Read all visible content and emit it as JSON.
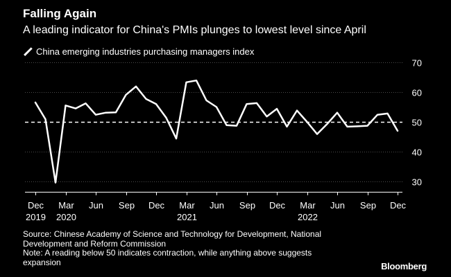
{
  "title": "Falling Again",
  "subtitle": "A leading indicator for China's PMIs plunges to lowest level since April",
  "legend": {
    "label": "China emerging industries purchasing managers index",
    "icon": "diagonal-line-icon"
  },
  "source": {
    "lines": [
      "Source: Chinese Academy of Science and Technology for Development, National",
      "Development and Reform Commission",
      "Note: A reading below 50 indicates contraction, while anything above suggests",
      "expansion"
    ]
  },
  "brand": "Bloomberg",
  "colors": {
    "background": "#000000",
    "line": "#ffffff",
    "grid": "#4d4d4d",
    "text": "#ffffff"
  },
  "chart_data": {
    "type": "line",
    "title": "Falling Again",
    "subtitle": "A leading indicator for China's PMIs plunges to lowest level since April",
    "xlabel": "",
    "ylabel": "",
    "ylim": [
      26.5,
      70
    ],
    "yticks": [
      30,
      40,
      50,
      60,
      70
    ],
    "reference_line": {
      "value": 50,
      "style": "dashed"
    },
    "grid": true,
    "legend_position": "top-left",
    "x_tick_labels": [
      {
        "index": 0,
        "month": "Dec",
        "year": "2019"
      },
      {
        "index": 3,
        "month": "Mar",
        "year": "2020"
      },
      {
        "index": 6,
        "month": "Jun",
        "year": ""
      },
      {
        "index": 9,
        "month": "Sep",
        "year": ""
      },
      {
        "index": 12,
        "month": "Dec",
        "year": ""
      },
      {
        "index": 15,
        "month": "Mar",
        "year": "2021"
      },
      {
        "index": 18,
        "month": "Jun",
        "year": ""
      },
      {
        "index": 21,
        "month": "Sep",
        "year": ""
      },
      {
        "index": 24,
        "month": "Dec",
        "year": ""
      },
      {
        "index": 27,
        "month": "Mar",
        "year": "2022"
      },
      {
        "index": 30,
        "month": "Jun",
        "year": ""
      },
      {
        "index": 33,
        "month": "Sep",
        "year": ""
      },
      {
        "index": 36,
        "month": "Dec",
        "year": ""
      }
    ],
    "series": [
      {
        "name": "China emerging industries purchasing managers index",
        "x": [
          "2019-12",
          "2020-01",
          "2020-02",
          "2020-03",
          "2020-04",
          "2020-05",
          "2020-06",
          "2020-07",
          "2020-08",
          "2020-09",
          "2020-10",
          "2020-11",
          "2020-12",
          "2021-01",
          "2021-02",
          "2021-03",
          "2021-04",
          "2021-05",
          "2021-06",
          "2021-07",
          "2021-08",
          "2021-09",
          "2021-10",
          "2021-11",
          "2021-12",
          "2022-01",
          "2022-02",
          "2022-03",
          "2022-04",
          "2022-05",
          "2022-06",
          "2022-07",
          "2022-08",
          "2022-09",
          "2022-10",
          "2022-11",
          "2022-12"
        ],
        "values": [
          56.5,
          50.9,
          29.6,
          55.5,
          54.5,
          56.2,
          52.4,
          53.1,
          53.2,
          59.1,
          61.9,
          57.7,
          56.0,
          51.4,
          44.4,
          63.3,
          63.9,
          57.2,
          55.0,
          48.9,
          48.7,
          56.0,
          56.3,
          51.8,
          54.4,
          48.4,
          53.8,
          50.0,
          45.9,
          49.3,
          53.1,
          48.4,
          48.5,
          48.7,
          52.4,
          52.8,
          47.0
        ]
      }
    ]
  }
}
